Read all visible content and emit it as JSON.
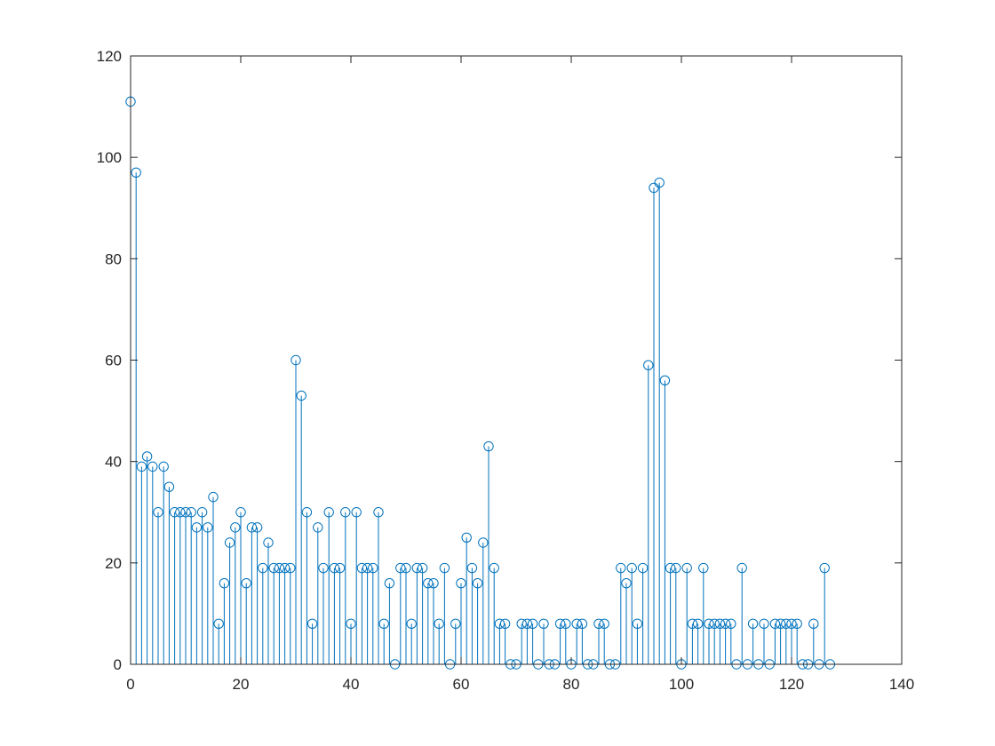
{
  "chart_data": {
    "type": "stem",
    "title": "",
    "xlabel": "",
    "ylabel": "",
    "xlim": [
      0,
      140
    ],
    "ylim": [
      0,
      120
    ],
    "xticks": [
      0,
      20,
      40,
      60,
      80,
      100,
      120,
      140
    ],
    "yticks": [
      0,
      20,
      40,
      60,
      80,
      100,
      120
    ],
    "xtick_labels": [
      "0",
      "20",
      "40",
      "60",
      "80",
      "100",
      "120",
      "140"
    ],
    "ytick_labels": [
      "0",
      "20",
      "40",
      "60",
      "80",
      "100",
      "120"
    ],
    "grid": false,
    "marker": "circle",
    "series_color": "#0072BD",
    "axis_color": "#262626",
    "x": [
      0,
      1,
      2,
      3,
      4,
      5,
      6,
      7,
      8,
      9,
      10,
      11,
      12,
      13,
      14,
      15,
      16,
      17,
      18,
      19,
      20,
      21,
      22,
      23,
      24,
      25,
      26,
      27,
      28,
      29,
      30,
      31,
      32,
      33,
      34,
      35,
      36,
      37,
      38,
      39,
      40,
      41,
      42,
      43,
      44,
      45,
      46,
      47,
      48,
      49,
      50,
      51,
      52,
      53,
      54,
      55,
      56,
      57,
      58,
      59,
      60,
      61,
      62,
      63,
      64,
      65,
      66,
      67,
      68,
      69,
      70,
      71,
      72,
      73,
      74,
      75,
      76,
      77,
      78,
      79,
      80,
      81,
      82,
      83,
      84,
      85,
      86,
      87,
      88,
      89,
      90,
      91,
      92,
      93,
      94,
      95,
      96,
      97,
      98,
      99,
      100,
      101,
      102,
      103,
      104,
      105,
      106,
      107,
      108,
      109,
      110,
      111,
      112,
      113,
      114,
      115,
      116,
      117,
      118,
      119,
      120,
      121,
      122,
      123,
      124,
      125,
      126,
      127
    ],
    "y": [
      111,
      97,
      39,
      41,
      39,
      30,
      39,
      35,
      30,
      30,
      30,
      30,
      27,
      30,
      27,
      33,
      8,
      16,
      24,
      27,
      30,
      16,
      27,
      27,
      19,
      24,
      19,
      19,
      19,
      19,
      60,
      53,
      30,
      8,
      27,
      19,
      30,
      19,
      19,
      30,
      8,
      30,
      19,
      19,
      19,
      30,
      8,
      16,
      0,
      19,
      19,
      8,
      19,
      19,
      16,
      16,
      8,
      19,
      0,
      8,
      16,
      25,
      19,
      16,
      24,
      43,
      19,
      8,
      8,
      0,
      0,
      8,
      8,
      8,
      0,
      8,
      0,
      0,
      8,
      8,
      0,
      8,
      8,
      0,
      0,
      8,
      8,
      0,
      0,
      19,
      16,
      19,
      8,
      19,
      59,
      94,
      95,
      56,
      19,
      19,
      0,
      19,
      8,
      8,
      19,
      8,
      8,
      8,
      8,
      8,
      0,
      19,
      0,
      8,
      0,
      8,
      0,
      8,
      8,
      8,
      8,
      8,
      0,
      0,
      8,
      0,
      19,
      0
    ]
  }
}
